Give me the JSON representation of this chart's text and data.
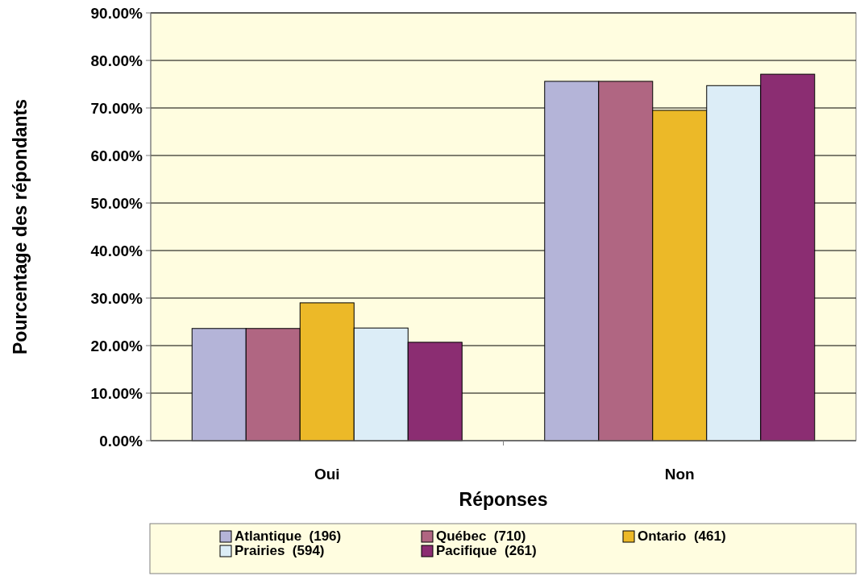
{
  "chart_data": {
    "type": "bar",
    "xlabel": "Réponses",
    "ylabel": "Pourcentage des répondants",
    "categories": [
      "Oui",
      "Non"
    ],
    "series": [
      {
        "name": "Atlantique  (196)",
        "color": "#b4b4d8",
        "values": [
          23.6,
          75.6
        ]
      },
      {
        "name": "Québec  (710)",
        "color": "#b06682",
        "values": [
          23.6,
          75.6
        ]
      },
      {
        "name": "Ontario  (461)",
        "color": "#ecb928",
        "values": [
          29.0,
          69.5
        ]
      },
      {
        "name": "Prairies  (594)",
        "color": "#dcedf7",
        "values": [
          23.7,
          74.7
        ]
      },
      {
        "name": "Pacifique  (261)",
        "color": "#8b2d72",
        "values": [
          20.7,
          77.1
        ]
      }
    ],
    "ylim": [
      0,
      90
    ],
    "yticks": [
      {
        "value": 0,
        "label": "0.00%"
      },
      {
        "value": 10,
        "label": "10.00%"
      },
      {
        "value": 20,
        "label": "20.00%"
      },
      {
        "value": 30,
        "label": "30.00%"
      },
      {
        "value": 40,
        "label": "40.00%"
      },
      {
        "value": 50,
        "label": "50.00%"
      },
      {
        "value": 60,
        "label": "60.00%"
      },
      {
        "value": 70,
        "label": "70.00%"
      },
      {
        "value": 80,
        "label": "80.00%"
      },
      {
        "value": 90,
        "label": "90.00%"
      }
    ],
    "grid": "y",
    "legend": "bottom"
  }
}
